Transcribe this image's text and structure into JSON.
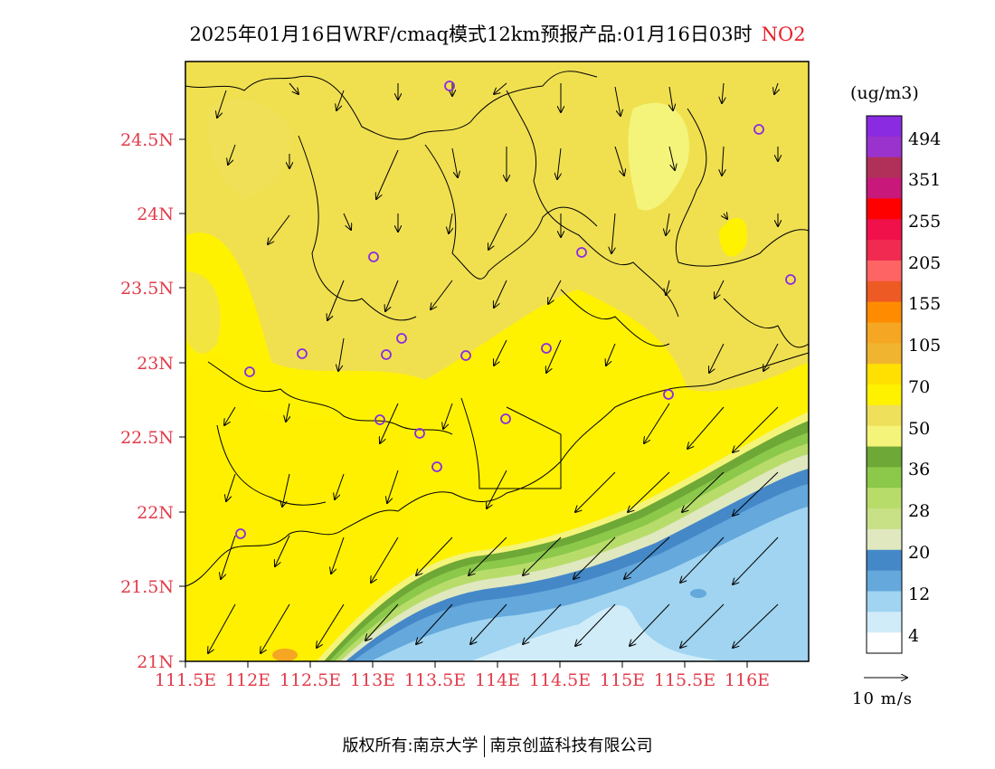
{
  "title": {
    "main": "2025年01月16日WRF/cmaq模式12km预报产品:01月16日03时",
    "pollutant": "NO2"
  },
  "axes": {
    "lat_labels": [
      "24.5N",
      "24N",
      "23.5N",
      "23N",
      "22.5N",
      "22N",
      "21.5N",
      "21N"
    ],
    "lon_labels": [
      "111.5E",
      "112E",
      "112.5E",
      "113E",
      "113.5E",
      "114E",
      "114.5E",
      "115E",
      "115.5E",
      "116E"
    ]
  },
  "legend": {
    "unit": "(ug/m3)",
    "labels": [
      "494",
      "351",
      "255",
      "205",
      "155",
      "105",
      "70",
      "50",
      "36",
      "28",
      "20",
      "12",
      "4"
    ],
    "colors_top_to_bottom": [
      "#8a2be2",
      "#9a32cd",
      "#b0305a",
      "#c8187a",
      "#ff0000",
      "#f0104a",
      "#f02a50",
      "#ff6464",
      "#ee5a24",
      "#ff8c00",
      "#f5a623",
      "#f0b430",
      "#ffe000",
      "#fff200",
      "#eee05a",
      "#f4f47a",
      "#6ea836",
      "#8cc84a",
      "#b8dc6a",
      "#c8e086",
      "#e0e8c0",
      "#4488c8",
      "#64a8dc",
      "#a0d4f0",
      "#d0ecf8",
      "#ffffff"
    ]
  },
  "wind": {
    "scale_label": "10  m/s"
  },
  "cities": [
    "circle-marker"
  ],
  "footer": {
    "left": "版权所有:南京大学",
    "right": "南京创蓝科技有限公司"
  }
}
